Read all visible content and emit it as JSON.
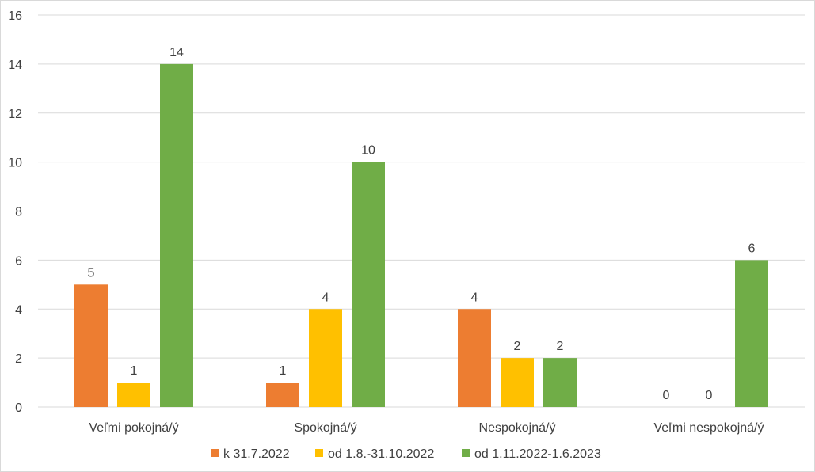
{
  "chart_data": {
    "type": "bar",
    "title": "",
    "xlabel": "",
    "ylabel": "",
    "ylim": [
      0,
      16
    ],
    "ytick_step": 2,
    "categories": [
      "Veľmi pokojná/ý",
      "Spokojná/ý",
      "Nespokojná/ý",
      "Veľmi nespokojná/ý"
    ],
    "series": [
      {
        "name": "k 31.7.2022",
        "color": "#ED7D31",
        "values": [
          5,
          1,
          4,
          0
        ]
      },
      {
        "name": "od 1.8.-31.10.2022",
        "color": "#FFC000",
        "values": [
          1,
          4,
          2,
          0
        ]
      },
      {
        "name": "od 1.11.2022-1.6.2023",
        "color": "#70AD47",
        "values": [
          14,
          10,
          2,
          6
        ]
      }
    ],
    "grid": true,
    "grid_color": "#d9d9d9",
    "legend_position": "bottom",
    "data_labels": true
  }
}
